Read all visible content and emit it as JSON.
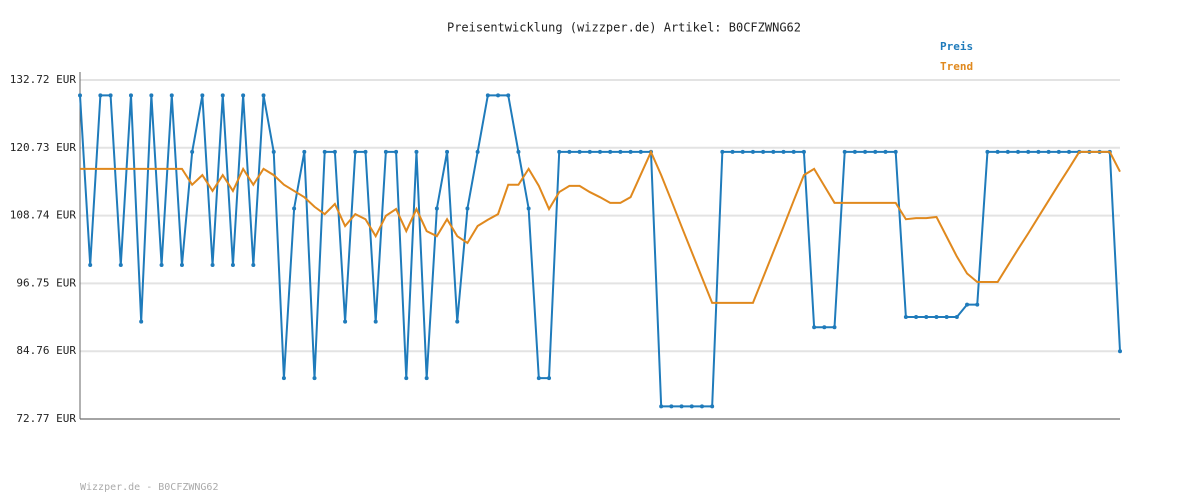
{
  "chart_data": {
    "type": "line",
    "title": "Preisentwicklung (wizzper.de) Artikel: B0CFZWNG62",
    "footer": "Wizzper.de - B0CFZWNG62",
    "ylim": [
      72.77,
      132.72
    ],
    "yticks": [
      {
        "value": 72.77,
        "label": "72.77 EUR"
      },
      {
        "value": 84.76,
        "label": "84.76 EUR"
      },
      {
        "value": 96.75,
        "label": "96.75 EUR"
      },
      {
        "value": 108.74,
        "label": "108.74 EUR"
      },
      {
        "value": 120.73,
        "label": "120.73 EUR"
      },
      {
        "value": 132.72,
        "label": "132.72 EUR"
      }
    ],
    "grid": true,
    "legend": "top-right",
    "series": [
      {
        "name": "Preis",
        "color": "#1f7bbb",
        "markers": true,
        "values": [
          130,
          100,
          130,
          130,
          100,
          130,
          90,
          130,
          100,
          130,
          100,
          120,
          130,
          100,
          130,
          100,
          130,
          100,
          130,
          120,
          80,
          110,
          120,
          80,
          120,
          120,
          90,
          120,
          120,
          90,
          120,
          120,
          80,
          120,
          80,
          110,
          120,
          90,
          110,
          120,
          130,
          130,
          130,
          120,
          110,
          80,
          80,
          120,
          120,
          120,
          120,
          120,
          120,
          120,
          120,
          120,
          120,
          75,
          75,
          75,
          75,
          75,
          75,
          120,
          120,
          120,
          120,
          120,
          120,
          120,
          120,
          120,
          89,
          89,
          89,
          120,
          120,
          120,
          120,
          120,
          120,
          90.8,
          90.8,
          90.8,
          90.8,
          90.8,
          90.8,
          93,
          93,
          120,
          120,
          120,
          120,
          120,
          120,
          120,
          120,
          120,
          120,
          120,
          120,
          120,
          84.76
        ]
      },
      {
        "name": "Trend",
        "color": "#e0891e",
        "markers": false,
        "values": [
          117,
          117,
          117,
          117,
          117,
          117,
          117,
          117,
          117,
          117,
          117,
          114.2,
          115.9,
          113.1,
          115.9,
          113.1,
          117,
          114.2,
          117,
          115.9,
          114.2,
          113.1,
          112,
          110.3,
          109,
          110.8,
          106.9,
          109,
          108.1,
          105.1,
          108.7,
          109.9,
          106,
          109.9,
          106,
          105.1,
          108.1,
          105.1,
          103.9,
          106.9,
          108,
          109,
          114.2,
          114.2,
          117,
          114,
          109.9,
          112.9,
          114,
          114,
          112.9,
          112,
          111,
          111,
          112,
          116,
          120,
          115.9,
          111.4,
          106.8,
          102.3,
          97.8,
          93.3,
          93.3,
          93.3,
          93.3,
          93.3,
          97.8,
          102.3,
          106.8,
          111.4,
          115.9,
          117,
          114,
          111,
          111,
          111,
          111,
          111,
          111,
          111,
          108.1,
          108.3,
          108.3,
          108.5,
          105,
          101.5,
          98.5,
          97,
          97,
          97,
          99.9,
          102.8,
          105.6,
          108.5,
          111.4,
          114.3,
          117.1,
          120,
          120,
          120,
          120,
          116.5
        ]
      }
    ]
  }
}
